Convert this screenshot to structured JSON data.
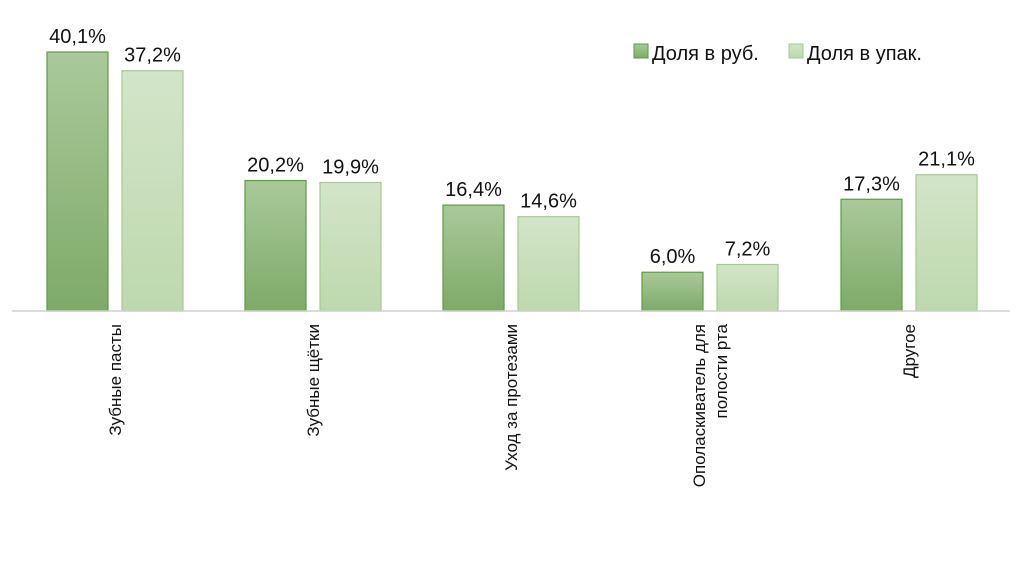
{
  "chart_data": {
    "type": "bar",
    "categories": [
      [
        "Зубные пасты"
      ],
      [
        "Зубные щётки"
      ],
      [
        "Уход за протезами"
      ],
      [
        "Ополаскиватель для",
        "полости рта"
      ],
      [
        "Другое"
      ]
    ],
    "series": [
      {
        "name": "Доля в руб.",
        "values": [
          40.1,
          20.2,
          16.4,
          6.0,
          17.3
        ],
        "labels": [
          "40,1%",
          "20,2%",
          "16,4%",
          "6,0%",
          "17,3%"
        ],
        "color_top": "#a9c99a",
        "color_bottom": "#7eaa69",
        "border": "#5e9a48"
      },
      {
        "name": "Доля в упак.",
        "values": [
          37.2,
          19.9,
          14.6,
          7.2,
          21.1
        ],
        "labels": [
          "37,2%",
          "19,9%",
          "14,6%",
          "7,2%",
          "21,1%"
        ],
        "color_top": "#d3e5c8",
        "color_bottom": "#bed8ae",
        "border": "#a6c894"
      }
    ],
    "title": "",
    "xlabel": "",
    "ylabel": "",
    "ylim": [
      0,
      40.1
    ],
    "grid": false,
    "legend_position": "top-right",
    "axis_color": "#d0d0d0"
  }
}
